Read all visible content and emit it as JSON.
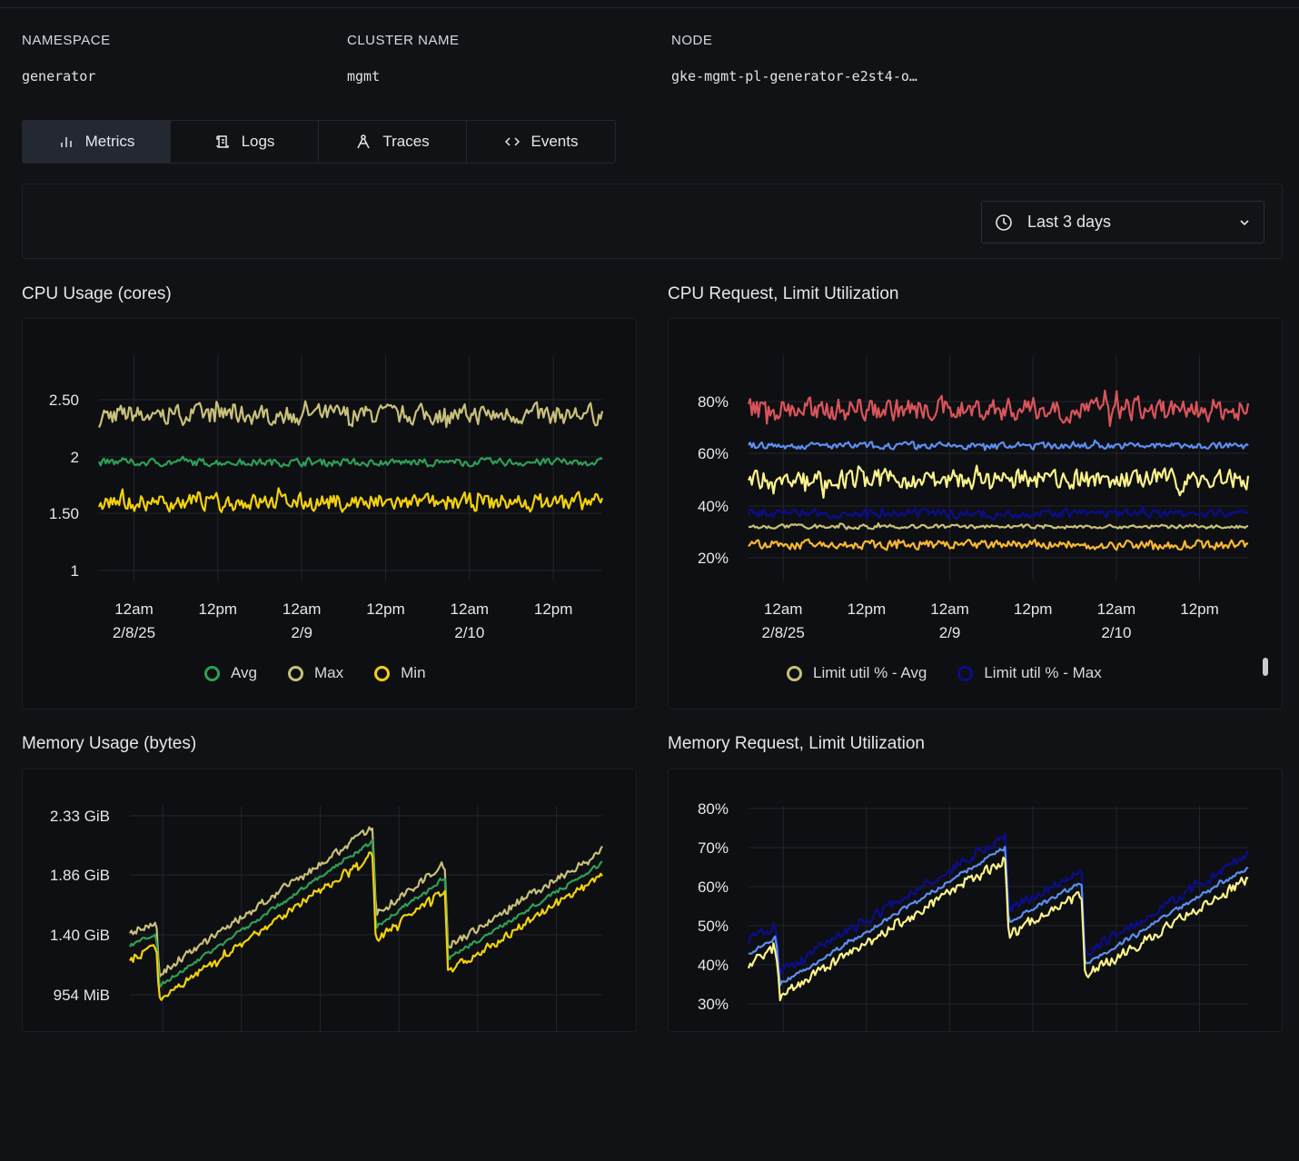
{
  "meta": [
    {
      "label": "NAMESPACE",
      "value": "generator"
    },
    {
      "label": "CLUSTER NAME",
      "value": "mgmt"
    },
    {
      "label": "NODE",
      "value": "gke-mgmt-pl-generator-e2st4-o…"
    }
  ],
  "tabs": [
    {
      "label": "Metrics",
      "icon": "bar-chart-icon",
      "active": true
    },
    {
      "label": "Logs",
      "icon": "scroll-icon",
      "active": false
    },
    {
      "label": "Traces",
      "icon": "traces-icon",
      "active": false
    },
    {
      "label": "Events",
      "icon": "code-icon",
      "active": false
    }
  ],
  "time_range": {
    "label": "Last 3 days",
    "icon": "clock-icon"
  },
  "colors": {
    "background": "#111216",
    "active_tab": "#232833"
  },
  "chart_data": [
    {
      "type": "line",
      "title": "CPU Usage (cores)",
      "x_range": [
        "2025-02-07T19:00",
        "2025-02-10T19:00"
      ],
      "x_ticks": [
        {
          "l1": "12am",
          "l2": "2/8/25"
        },
        {
          "l1": "12pm",
          "l2": ""
        },
        {
          "l1": "12am",
          "l2": "2/9"
        },
        {
          "l1": "12pm",
          "l2": ""
        },
        {
          "l1": "12am",
          "l2": "2/10"
        },
        {
          "l1": "12pm",
          "l2": ""
        }
      ],
      "y_ticks": [
        "1",
        "1.50",
        "2",
        "2.50"
      ],
      "ylim": [
        1,
        2.5
      ],
      "grid": true,
      "legend": [
        "Avg",
        "Max",
        "Min"
      ],
      "legend_placement": "bottom",
      "series": [
        {
          "name": "Max",
          "color": "#c9c07a",
          "level": 2.37,
          "jitter": 0.08
        },
        {
          "name": "Avg",
          "color": "#2e9e57",
          "level": 1.95,
          "jitter": 0.03
        },
        {
          "name": "Min",
          "color": "#f2d10c",
          "level": 1.6,
          "jitter": 0.07
        }
      ]
    },
    {
      "type": "line",
      "title": "CPU Request, Limit Utilization",
      "x_range": [
        "2025-02-07T19:00",
        "2025-02-10T19:00"
      ],
      "x_ticks": [
        {
          "l1": "12am",
          "l2": "2/8/25"
        },
        {
          "l1": "12pm",
          "l2": ""
        },
        {
          "l1": "12am",
          "l2": "2/9"
        },
        {
          "l1": "12pm",
          "l2": ""
        },
        {
          "l1": "12am",
          "l2": "2/10"
        },
        {
          "l1": "12pm",
          "l2": ""
        }
      ],
      "y_ticks": [
        "20%",
        "40%",
        "60%",
        "80%"
      ],
      "ylim": [
        20,
        80
      ],
      "grid": true,
      "legend": [
        {
          "name": "Limit util % - Avg",
          "color": "#c9c07a"
        },
        {
          "name": "Limit util % - Max",
          "color": "#0b0d8a"
        }
      ],
      "legend_placement": "bottom",
      "series": [
        {
          "color": "#d9545a",
          "level": 77,
          "jitter": 4
        },
        {
          "color": "#5b8ef0",
          "level": 63,
          "jitter": 1.2
        },
        {
          "color": "#fbf38a",
          "level": 50,
          "jitter": 3.5
        },
        {
          "color": "#0b0d8a",
          "level": 37,
          "jitter": 1.5
        },
        {
          "name": "Limit util % - Avg",
          "color": "#c9c07a",
          "level": 32,
          "jitter": 0.7
        },
        {
          "color": "#f7b731",
          "level": 25,
          "jitter": 1.6
        }
      ]
    },
    {
      "type": "line",
      "title": "Memory Usage (bytes)",
      "x_range": [
        "2025-02-07T19:00",
        "2025-02-10T19:00"
      ],
      "y_ticks": [
        "954 MiB",
        "1.40 GiB",
        "1.86 GiB",
        "2.33 GiB"
      ],
      "ylim_gib": [
        0.932,
        2.33
      ],
      "grid": true,
      "series": [
        {
          "color": "#c9c07a",
          "offset": 0.1,
          "jitter": 0.03
        },
        {
          "color": "#2e9e57",
          "offset": 0,
          "jitter": 0.015
        },
        {
          "color": "#f2d10c",
          "offset": -0.1,
          "jitter": 0.03
        }
      ],
      "base_points_gib": [
        [
          "2025-02-07T19:00",
          1.32
        ],
        [
          "2025-02-07T23:00",
          1.4
        ],
        [
          "2025-02-07T23:30",
          1.0
        ],
        [
          "2025-02-09T08:00",
          2.13
        ],
        [
          "2025-02-09T08:30",
          1.46
        ],
        [
          "2025-02-09T19:00",
          1.85
        ],
        [
          "2025-02-09T19:30",
          1.21
        ],
        [
          "2025-02-10T19:00",
          1.96
        ]
      ]
    },
    {
      "type": "line",
      "title": "Memory Request, Limit Utilization",
      "x_range": [
        "2025-02-07T19:00",
        "2025-02-10T19:00"
      ],
      "y_ticks": [
        "30%",
        "40%",
        "50%",
        "60%",
        "70%",
        "80%"
      ],
      "ylim": [
        30,
        80
      ],
      "grid": true,
      "series": [
        {
          "color": "#0b0d8a",
          "offset": 3,
          "jitter": 1.2
        },
        {
          "color": "#5b8ef0",
          "offset": 0,
          "jitter": 0.5
        },
        {
          "color": "#fbf38a",
          "offset": -3,
          "jitter": 1.2
        }
      ],
      "base_points": [
        [
          "2025-02-07T19:00",
          43
        ],
        [
          "2025-02-07T23:00",
          47
        ],
        [
          "2025-02-07T23:30",
          35
        ],
        [
          "2025-02-09T08:00",
          70
        ],
        [
          "2025-02-09T08:30",
          51
        ],
        [
          "2025-02-09T19:00",
          61
        ],
        [
          "2025-02-09T19:30",
          40
        ],
        [
          "2025-02-10T19:00",
          65
        ]
      ]
    }
  ]
}
